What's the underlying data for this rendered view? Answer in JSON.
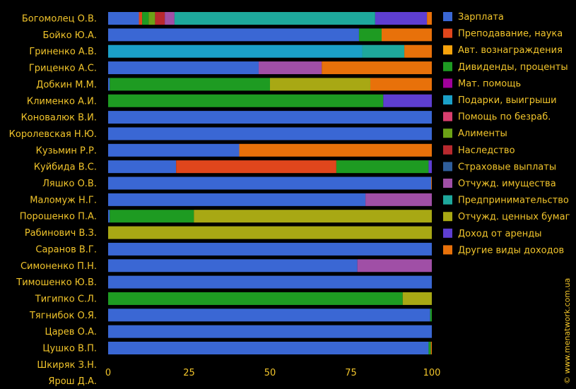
{
  "chart_data": {
    "type": "bar",
    "orientation": "horizontal",
    "stacked": true,
    "title": "",
    "xlabel": "",
    "ylabel": "",
    "xlim": [
      0,
      100
    ],
    "xticks": [
      0,
      25,
      50,
      75,
      100
    ],
    "xtick_labels": [
      "0",
      "25",
      "50",
      "75",
      "100"
    ],
    "grid": false,
    "legend_position": "right",
    "categories": [
      "Богомолец О.В.",
      "Бойко Ю.А.",
      "Гриненко А.В.",
      "Гриценко А.С.",
      "Добкин М.М.",
      "Клименко А.И.",
      "Коновалюк В.И.",
      "Королевская Н.Ю.",
      "Кузьмин Р.Р.",
      "Куйбида В.С.",
      "Ляшко О.В.",
      "Маломуж Н.Г.",
      "Порошенко П.А.",
      "Рабинович В.З.",
      "Саранов В.Г.",
      "Симоненко П.Н.",
      "Тимошенко Ю.В.",
      "Тигипко С.Л.",
      "Тягнибок О.Я.",
      "Царев О.А.",
      "Цушко В.П.",
      "Шкиряк З.Н.",
      "Ярош Д.А."
    ],
    "series": [
      {
        "name": "Зарплата",
        "color": "#3a67d4",
        "values": [
          9.5,
          77.5,
          0,
          46.5,
          0.5,
          0,
          100,
          100,
          40.5,
          21,
          99.8,
          79.5,
          0.5,
          0,
          100,
          77,
          100,
          0,
          99.5,
          100,
          99,
          0,
          0
        ]
      },
      {
        "name": "Преподавание, наука",
        "color": "#e0461c",
        "values": [
          1,
          0,
          0,
          0,
          0,
          0,
          0,
          0,
          0,
          49.5,
          0,
          0,
          0,
          0,
          0,
          0,
          0,
          0,
          0,
          0,
          0,
          0,
          0
        ]
      },
      {
        "name": "Авт. вознаграждения",
        "color": "#f7a30c",
        "values": [
          0,
          0,
          0,
          0,
          0,
          0,
          0,
          0,
          0,
          0,
          0,
          0,
          0,
          0,
          0,
          0,
          0,
          0,
          0,
          0,
          0,
          0,
          0
        ]
      },
      {
        "name": "Дивиденды, проценты",
        "color": "#1e9b22",
        "values": [
          2,
          7,
          0,
          0,
          49.5,
          85,
          0,
          0,
          0,
          28.5,
          0,
          0,
          26,
          0,
          0,
          0,
          0,
          91,
          0.5,
          0,
          0.7,
          0,
          0
        ]
      },
      {
        "name": "Мат. помощь",
        "color": "#a0009a",
        "values": [
          0,
          0,
          0,
          0,
          0,
          0,
          0,
          0,
          0,
          0,
          0,
          0,
          0,
          0,
          0,
          0,
          0,
          0,
          0,
          0,
          0,
          0,
          0
        ]
      },
      {
        "name": "Подарки, выигрыши",
        "color": "#1ba0c7",
        "values": [
          0,
          0,
          78.5,
          0,
          0,
          0,
          0,
          0,
          0,
          0,
          0,
          0,
          0,
          0,
          0,
          0,
          0,
          0,
          0,
          0,
          0,
          0,
          0
        ]
      },
      {
        "name": "Помощь по безраб.",
        "color": "#d83f6e",
        "values": [
          0,
          0,
          0,
          0,
          0,
          0,
          0,
          0,
          0,
          0,
          0,
          0,
          0,
          0,
          0,
          0,
          0,
          0,
          0,
          0,
          0,
          0,
          0
        ]
      },
      {
        "name": "Алименты",
        "color": "#6ca216",
        "values": [
          2,
          0,
          0,
          0,
          0,
          0,
          0,
          0,
          0,
          0,
          0,
          0,
          0,
          0,
          0,
          0,
          0,
          0,
          0,
          0,
          0,
          0,
          0
        ]
      },
      {
        "name": "Наследство",
        "color": "#b8292e",
        "values": [
          3,
          0,
          0,
          0,
          0,
          0,
          0,
          0,
          0,
          0,
          0,
          0,
          0,
          0,
          0,
          0,
          0,
          0,
          0,
          0,
          0,
          0,
          0
        ]
      },
      {
        "name": "Страховые выплаты",
        "color": "#2f5e9b",
        "values": [
          0,
          0,
          0,
          0,
          0,
          0,
          0,
          0,
          0,
          0,
          0,
          0,
          0,
          0,
          0,
          0,
          0,
          0,
          0,
          0,
          0,
          0,
          0
        ]
      },
      {
        "name": "Отчужд. имущества",
        "color": "#a04fa6",
        "values": [
          3,
          0,
          0,
          19.5,
          0,
          0,
          0,
          0,
          0,
          0,
          0,
          20.5,
          0,
          0,
          0,
          23,
          0,
          0,
          0,
          0,
          0,
          0,
          0
        ]
      },
      {
        "name": "Предпринимательство",
        "color": "#1ea89c",
        "values": [
          62,
          0,
          13,
          0,
          0,
          0,
          0,
          0,
          0,
          0,
          0,
          0,
          0,
          0,
          0,
          0,
          0,
          0,
          0,
          0,
          0,
          0,
          0
        ]
      },
      {
        "name": "Отчужд. ценных бумаг",
        "color": "#a8a814",
        "values": [
          0,
          0,
          0,
          0,
          31,
          0,
          0,
          0,
          0,
          0,
          0,
          0,
          73.5,
          100,
          0,
          0,
          0,
          9,
          0,
          0,
          0,
          0,
          0
        ]
      },
      {
        "name": "Доход от аренды",
        "color": "#5e3ed1",
        "values": [
          16,
          0,
          0,
          0,
          0,
          15,
          0,
          0,
          0,
          1,
          0,
          0,
          0,
          0,
          0,
          0,
          0,
          0,
          0,
          0,
          0,
          0,
          0
        ]
      },
      {
        "name": "Другие виды доходов",
        "color": "#e8710a",
        "values": [
          1.5,
          15.5,
          8.5,
          34,
          19,
          0,
          0,
          0,
          59.5,
          0,
          0.2,
          0,
          0,
          0,
          0,
          0,
          0,
          0,
          0,
          0,
          0.3,
          0,
          0
        ]
      }
    ]
  },
  "watermark": "© www.menatwork.com.ua"
}
